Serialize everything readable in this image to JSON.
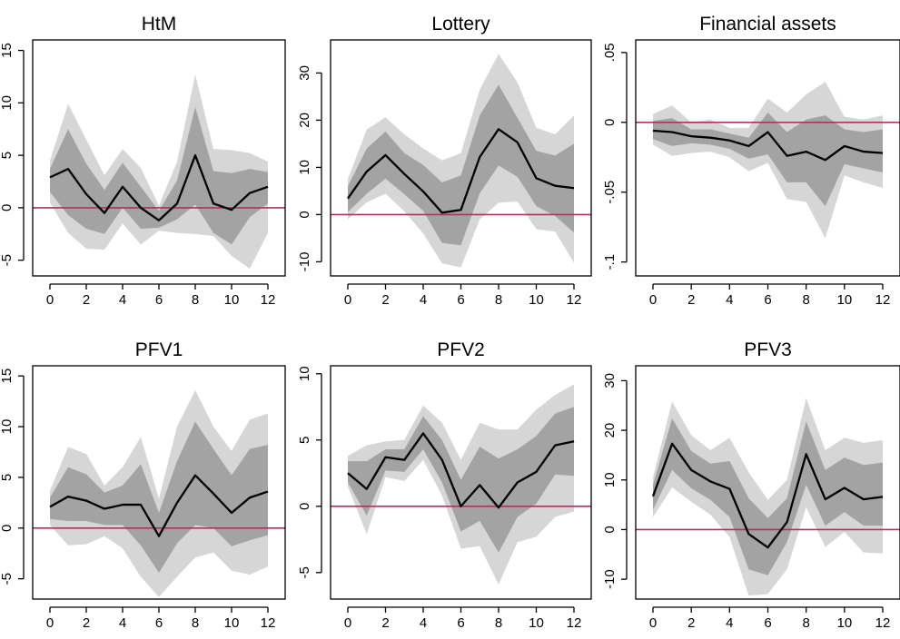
{
  "colors": {
    "outer_band": "#d6d6d6",
    "inner_band": "#a3a3a3",
    "line": "#000000",
    "zero_line": "#b0305e"
  },
  "chart_data": [
    {
      "type": "line",
      "title": "HtM",
      "xlabel": "",
      "ylabel": "",
      "x": [
        0,
        1,
        2,
        3,
        4,
        5,
        6,
        7,
        8,
        9,
        10,
        11,
        12
      ],
      "xticks": [
        0,
        2,
        4,
        6,
        8,
        10,
        12
      ],
      "xticklabels": [
        "0",
        "2",
        "4",
        "6",
        "8",
        "10",
        "12"
      ],
      "ylim": [
        -6.5,
        16
      ],
      "yticks": [
        -5,
        0,
        5,
        10,
        15
      ],
      "yticklabels": [
        "-5",
        "0",
        "5",
        "10",
        "15"
      ],
      "zero_line": 0,
      "series": [
        {
          "values": [
            2.9,
            3.7,
            1.3,
            -0.5,
            2.0,
            0.0,
            -1.2,
            0.4,
            5.0,
            0.4,
            -0.2,
            1.4,
            2.0
          ]
        }
      ],
      "bands": {
        "outer_upper": [
          4.5,
          9.9,
          6.5,
          3.1,
          5.6,
          3.8,
          0.2,
          4.4,
          12.7,
          5.6,
          5.5,
          5.2,
          4.4
        ],
        "outer_lower": [
          0.5,
          -2.4,
          -3.9,
          -4.0,
          -1.5,
          -3.5,
          -2.2,
          -2.4,
          -2.5,
          -2.7,
          -4.6,
          -5.8,
          -2.4
        ],
        "inner_upper": [
          3.7,
          7.5,
          4.2,
          1.7,
          4.3,
          2.0,
          -0.3,
          2.6,
          9.6,
          3.5,
          3.3,
          3.7,
          3.4
        ],
        "inner_lower": [
          1.5,
          -0.7,
          -2.0,
          -2.5,
          0.0,
          -2.0,
          -1.9,
          -1.1,
          0.3,
          -2.4,
          -3.5,
          -0.9,
          0.4
        ]
      }
    },
    {
      "type": "line",
      "title": "Lottery",
      "xlabel": "",
      "ylabel": "",
      "x": [
        0,
        1,
        2,
        3,
        4,
        5,
        6,
        7,
        8,
        9,
        10,
        11,
        12
      ],
      "xticks": [
        0,
        2,
        4,
        6,
        8,
        10,
        12
      ],
      "xticklabels": [
        "0",
        "2",
        "4",
        "6",
        "8",
        "10",
        "12"
      ],
      "ylim": [
        -13,
        37
      ],
      "yticks": [
        -10,
        0,
        10,
        20,
        30
      ],
      "yticklabels": [
        "-10",
        "0",
        "10",
        "20",
        "30"
      ],
      "zero_line": 0,
      "series": [
        {
          "values": [
            3.4,
            9.1,
            12.6,
            8.6,
            4.9,
            0.4,
            1.0,
            12.2,
            18.1,
            15.3,
            7.7,
            6.1,
            5.6
          ]
        }
      ],
      "bands": {
        "outer_upper": [
          7.5,
          18.0,
          20.6,
          17.0,
          14.0,
          11.5,
          13.0,
          26.5,
          34.0,
          28.0,
          18.4,
          17.0,
          21.0
        ],
        "outer_lower": [
          -1.0,
          2.6,
          4.4,
          0.7,
          -4.0,
          -10.3,
          -11.2,
          -1.0,
          2.5,
          2.8,
          -3.1,
          -3.6,
          -10.2
        ],
        "inner_upper": [
          6.0,
          14.0,
          17.6,
          13.0,
          10.5,
          6.8,
          8.3,
          21.0,
          27.5,
          20.5,
          13.5,
          12.5,
          15.0
        ],
        "inner_lower": [
          0.5,
          4.4,
          7.6,
          4.3,
          0.8,
          -6.0,
          -6.5,
          4.5,
          10.4,
          8.0,
          1.8,
          -0.3,
          -3.8
        ]
      }
    },
    {
      "type": "line",
      "title": "Financial assets",
      "xlabel": "",
      "ylabel": "",
      "x": [
        0,
        1,
        2,
        3,
        4,
        5,
        6,
        7,
        8,
        9,
        10,
        11,
        12
      ],
      "xticks": [
        0,
        2,
        4,
        6,
        8,
        10,
        12
      ],
      "xticklabels": [
        "0",
        "2",
        "4",
        "6",
        "8",
        "10",
        "12"
      ],
      "ylim": [
        -0.11,
        0.059
      ],
      "yticks": [
        -0.1,
        -0.05,
        0,
        0.05
      ],
      "yticklabels": [
        "-.1",
        "-.05",
        "0",
        ".05"
      ],
      "zero_line": 0,
      "series": [
        {
          "values": [
            -0.006,
            -0.007,
            -0.01,
            -0.011,
            -0.013,
            -0.017,
            -0.007,
            -0.024,
            -0.021,
            -0.027,
            -0.017,
            -0.021,
            -0.022
          ]
        }
      ],
      "bands": {
        "outer_upper": [
          0.006,
          0.012,
          0.0,
          0.002,
          -0.004,
          -0.004,
          0.017,
          0.007,
          0.02,
          0.029,
          0.004,
          0.002,
          0.005
        ],
        "outer_lower": [
          -0.016,
          -0.024,
          -0.022,
          -0.021,
          -0.025,
          -0.035,
          -0.029,
          -0.055,
          -0.057,
          -0.083,
          -0.038,
          -0.043,
          -0.047
        ],
        "inner_upper": [
          0.001,
          0.003,
          -0.005,
          -0.005,
          -0.008,
          -0.011,
          0.007,
          -0.007,
          0.002,
          0.005,
          -0.005,
          -0.007,
          -0.005
        ],
        "inner_lower": [
          -0.012,
          -0.017,
          -0.015,
          -0.016,
          -0.019,
          -0.026,
          -0.023,
          -0.043,
          -0.043,
          -0.06,
          -0.03,
          -0.033,
          -0.036
        ]
      }
    },
    {
      "type": "line",
      "title": "PFV1",
      "xlabel": "",
      "ylabel": "",
      "x": [
        0,
        1,
        2,
        3,
        4,
        5,
        6,
        7,
        8,
        9,
        10,
        11,
        12
      ],
      "xticks": [
        0,
        2,
        4,
        6,
        8,
        10,
        12
      ],
      "xticklabels": [
        "0",
        "2",
        "4",
        "6",
        "8",
        "10",
        "12"
      ],
      "ylim": [
        -7,
        16
      ],
      "yticks": [
        -5,
        0,
        5,
        10,
        15
      ],
      "yticklabels": [
        "-5",
        "0",
        "5",
        "10",
        "15"
      ],
      "zero_line": 0,
      "series": [
        {
          "values": [
            2.1,
            3.1,
            2.7,
            1.9,
            2.3,
            2.3,
            -0.8,
            2.5,
            5.2,
            3.4,
            1.5,
            3.0,
            3.6
          ]
        }
      ],
      "bands": {
        "outer_upper": [
          3.7,
          8.0,
          7.3,
          4.2,
          6.0,
          9.0,
          2.9,
          10.0,
          13.6,
          10.0,
          7.6,
          10.7,
          11.3
        ],
        "outer_lower": [
          0.3,
          -1.7,
          -1.6,
          -0.8,
          -2.0,
          -4.8,
          -6.8,
          -4.8,
          -2.9,
          -2.4,
          -4.2,
          -4.6,
          -3.8
        ],
        "inner_upper": [
          3.0,
          6.0,
          5.3,
          3.5,
          4.2,
          6.3,
          1.5,
          6.6,
          10.5,
          7.8,
          5.2,
          7.8,
          8.2
        ],
        "inner_lower": [
          0.9,
          0.7,
          0.7,
          0.3,
          0.3,
          -1.7,
          -4.4,
          -1.5,
          0.3,
          0.0,
          -1.8,
          -1.2,
          -0.7
        ]
      }
    },
    {
      "type": "line",
      "title": "PFV2",
      "xlabel": "",
      "ylabel": "",
      "x": [
        0,
        1,
        2,
        3,
        4,
        5,
        6,
        7,
        8,
        9,
        10,
        11,
        12
      ],
      "xticks": [
        0,
        2,
        4,
        6,
        8,
        10,
        12
      ],
      "xticklabels": [
        "0",
        "2",
        "4",
        "6",
        "8",
        "10",
        "12"
      ],
      "ylim": [
        -7,
        10.6
      ],
      "yticks": [
        -5,
        0,
        5,
        10
      ],
      "yticklabels": [
        "-5",
        "0",
        "5",
        "10"
      ],
      "zero_line": 0,
      "series": [
        {
          "values": [
            2.5,
            1.3,
            3.7,
            3.5,
            5.5,
            3.5,
            0.0,
            1.6,
            -0.1,
            1.8,
            2.6,
            4.6,
            4.9
          ]
        }
      ],
      "bands": {
        "outer_upper": [
          3.8,
          4.6,
          4.9,
          5.0,
          7.6,
          6.3,
          3.5,
          6.3,
          5.8,
          5.8,
          7.3,
          8.4,
          9.2
        ],
        "outer_lower": [
          1.5,
          -2.1,
          2.2,
          1.9,
          3.5,
          0.8,
          -3.2,
          -3.0,
          -5.9,
          -2.7,
          -2.3,
          -0.8,
          -0.4
        ],
        "inner_upper": [
          3.4,
          3.4,
          4.3,
          4.3,
          6.8,
          5.0,
          2.0,
          4.5,
          3.6,
          4.3,
          5.3,
          7.0,
          7.5
        ],
        "inner_lower": [
          1.8,
          -0.7,
          2.7,
          2.6,
          4.3,
          1.8,
          -1.9,
          -1.1,
          -3.5,
          -0.8,
          0.2,
          2.4,
          2.3
        ]
      }
    },
    {
      "type": "line",
      "title": "PFV3",
      "xlabel": "",
      "ylabel": "",
      "x": [
        0,
        1,
        2,
        3,
        4,
        5,
        6,
        7,
        8,
        9,
        10,
        11,
        12
      ],
      "xticks": [
        0,
        2,
        4,
        6,
        8,
        10,
        12
      ],
      "xticklabels": [
        "0",
        "2",
        "4",
        "6",
        "8",
        "10",
        "12"
      ],
      "ylim": [
        -14,
        33
      ],
      "yticks": [
        -10,
        0,
        10,
        20,
        30
      ],
      "yticklabels": [
        "-10",
        "0",
        "10",
        "20",
        "30"
      ],
      "zero_line": 0,
      "series": [
        {
          "values": [
            6.7,
            17.3,
            12.0,
            9.7,
            8.2,
            -0.9,
            -3.6,
            1.5,
            15.2,
            6.1,
            8.4,
            6.1,
            6.6
          ]
        }
      ],
      "bands": {
        "outer_upper": [
          10.5,
          25.8,
          19.0,
          16.0,
          18.5,
          11.5,
          6.0,
          10.0,
          26.5,
          16.0,
          18.5,
          17.5,
          18.0
        ],
        "outer_lower": [
          2.5,
          8.5,
          5.6,
          3.0,
          -1.5,
          -13.3,
          -13.0,
          -8.0,
          4.5,
          -3.5,
          -0.5,
          -4.6,
          -4.8
        ],
        "inner_upper": [
          9.0,
          22.4,
          15.8,
          13.3,
          13.8,
          6.3,
          2.3,
          6.3,
          21.8,
          12.0,
          14.5,
          13.0,
          13.5
        ],
        "inner_lower": [
          4.0,
          12.0,
          8.3,
          6.0,
          2.5,
          -8.0,
          -9.2,
          -2.5,
          9.0,
          0.8,
          3.5,
          0.8,
          0.8
        ]
      }
    }
  ]
}
